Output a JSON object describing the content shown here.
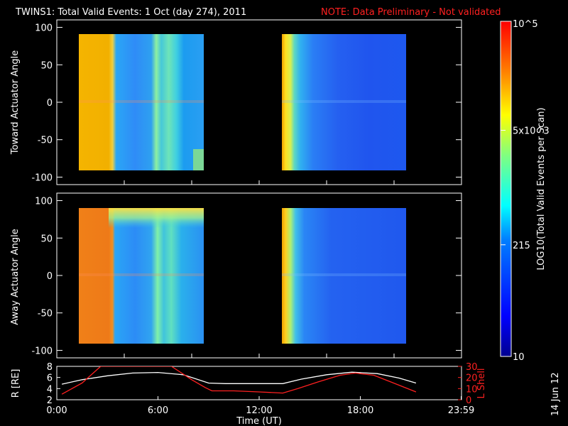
{
  "header": {
    "title": "TWINS1: Total Valid Events:  1 Oct (day 274), 2011",
    "note": "NOTE: Data Preliminary - Not validated",
    "note_color": "#ff2020"
  },
  "footer": {
    "date_stamp": "14 Jun 12"
  },
  "chart_data": [
    {
      "type": "heatmap",
      "ylabel": "Toward Actuator Angle",
      "ylim": [
        -110,
        110
      ],
      "yticks": [
        "100",
        "50",
        "0",
        "-50",
        "-100"
      ],
      "x": {
        "range_hours": [
          0,
          24
        ]
      },
      "blocks": [
        {
          "start_hour": 1.0,
          "end_hour": 8.6,
          "angle_range": [
            -90,
            90
          ]
        },
        {
          "start_hour": 13.4,
          "end_hour": 21.1,
          "angle_range": [
            -90,
            90
          ]
        }
      ]
    },
    {
      "type": "heatmap",
      "ylabel": "Away Actuator Angle",
      "ylim": [
        -110,
        110
      ],
      "yticks": [
        "100",
        "50",
        "0",
        "-50",
        "-100"
      ],
      "x": {
        "range_hours": [
          0,
          24
        ]
      },
      "blocks": [
        {
          "start_hour": 1.0,
          "end_hour": 8.6,
          "angle_range": [
            -90,
            90
          ]
        },
        {
          "start_hour": 13.4,
          "end_hour": 21.1,
          "angle_range": [
            -90,
            90
          ]
        }
      ]
    },
    {
      "type": "line",
      "ylabel_left": "R [RE]",
      "ylabel_right": "L Shell",
      "ylim_left": [
        2,
        8
      ],
      "ylim_right": [
        0,
        30
      ],
      "yticks_left": [
        "8",
        "6",
        "4",
        "2"
      ],
      "yticks_right": [
        "30",
        "20",
        "10",
        "0"
      ],
      "xlabel": "Time (UT)",
      "xticks": [
        "0:00",
        "6:00",
        "12:00",
        "18:00",
        "23:59"
      ],
      "xtick_hours": [
        0,
        6,
        12,
        18,
        23.98
      ],
      "series": [
        {
          "axis": "left",
          "color": "#ffffff",
          "points": [
            [
              0.3,
              4.8
            ],
            [
              1.5,
              5.6
            ],
            [
              3,
              6.3
            ],
            [
              4.5,
              6.8
            ],
            [
              6,
              6.9
            ],
            [
              7.5,
              6.5
            ],
            [
              9,
              5.0
            ],
            [
              10,
              4.9
            ],
            [
              12,
              4.9
            ],
            [
              13.4,
              4.9
            ],
            [
              14.5,
              5.7
            ],
            [
              16,
              6.5
            ],
            [
              17.5,
              6.95
            ],
            [
              19,
              6.7
            ],
            [
              20.3,
              5.9
            ],
            [
              21.3,
              5.0
            ]
          ]
        },
        {
          "axis": "right",
          "color": "#ff2020",
          "points": [
            [
              0.3,
              5
            ],
            [
              1.5,
              15
            ],
            [
              2.6,
              30
            ],
            [
              6.8,
              30
            ],
            [
              8,
              18
            ],
            [
              8.8,
              11
            ],
            [
              9.2,
              8
            ],
            [
              10.5,
              8
            ],
            [
              12,
              7
            ],
            [
              13.4,
              6
            ],
            [
              14.3,
              10
            ],
            [
              15.5,
              16
            ],
            [
              16.8,
              22
            ],
            [
              17.7,
              24
            ],
            [
              18.8,
              22
            ],
            [
              19.8,
              16
            ],
            [
              21.3,
              7
            ]
          ]
        }
      ]
    },
    {
      "type": "heatmap",
      "title": "colorbar",
      "ylabel": "LOG10(Total Valid Events per Scan)",
      "ticks": [
        "10",
        "215",
        "5x10^3",
        "10^5"
      ],
      "range_log10": [
        1,
        5
      ]
    }
  ]
}
